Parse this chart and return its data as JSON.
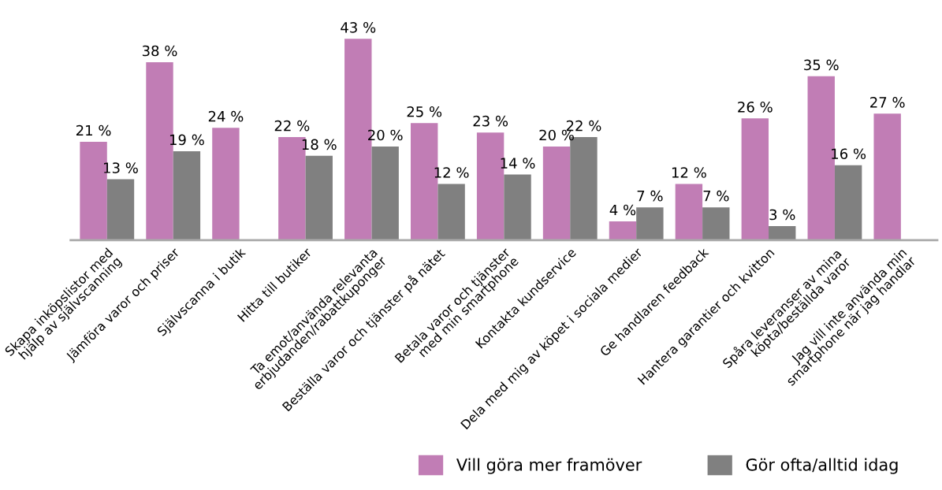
{
  "chart_data": {
    "type": "bar",
    "categories": [
      "Skapa inköpslistor med\nhjälp av självscanning",
      "Jämföra varor och priser",
      "Självscanna i butik",
      "Hitta till butiker",
      "Ta emot/använda relevanta\nerbjudanden/rabattkuponger",
      "Beställa varor och tjänster på nätet",
      "Betala varor och tjänster\nmed min smartphone",
      "Kontakta kundservice",
      "Dela med mig av köpet i sociala medier",
      "Ge handlaren feedback",
      "Hantera garantier och kvitton",
      "Spåra leveranser av mina\nköpta/beställda varor",
      "Jag vill inte använda min\nsmartphone när jag handlar"
    ],
    "series": [
      {
        "name": "Vill göra mer framöver",
        "color": "#c17db5",
        "values": [
          21,
          38,
          24,
          22,
          43,
          25,
          23,
          20,
          4,
          12,
          26,
          35,
          27
        ],
        "value_labels": [
          "21 %",
          "38 %",
          "24 %",
          "22 %",
          "43 %",
          "25 %",
          "23 %",
          "20 %",
          "4 %",
          "12 %",
          "26 %",
          "35 %",
          "27 %"
        ]
      },
      {
        "name": "Gör ofta/alltid idag",
        "color": "#808080",
        "values": [
          13,
          19,
          null,
          18,
          20,
          12,
          14,
          22,
          7,
          7,
          3,
          16,
          null
        ],
        "value_labels": [
          "13 %",
          "19 %",
          null,
          "18 %",
          "20 %",
          "12 %",
          "14 %",
          "22 %",
          "7 %",
          "7 %",
          "3 %",
          "16 %",
          null
        ]
      }
    ],
    "legend": "bottom right",
    "grid": false
  }
}
